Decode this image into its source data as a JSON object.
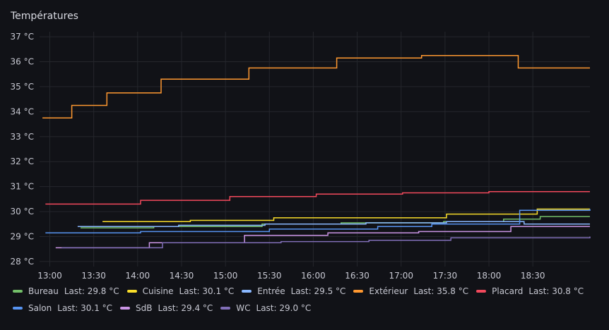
{
  "panel": {
    "title": "Températures"
  },
  "chart_data": {
    "type": "line",
    "title": "Températures",
    "xlabel": "",
    "ylabel": "",
    "unit": "°C",
    "xlim": [
      "12:53",
      "19:09"
    ],
    "ylim": [
      27.8,
      37.2
    ],
    "y_ticks": [
      "28 °C",
      "29 °C",
      "30 °C",
      "31 °C",
      "32 °C",
      "33 °C",
      "34 °C",
      "35 °C",
      "36 °C",
      "37 °C"
    ],
    "x_ticks": [
      "13:00",
      "13:30",
      "14:00",
      "14:30",
      "15:00",
      "15:30",
      "16:00",
      "16:30",
      "17:00",
      "17:30",
      "18:00",
      "18:30"
    ],
    "grid": true,
    "legend_position": "bottom",
    "series": [
      {
        "name": "Bureau",
        "color": "#73bf69",
        "last": "Last: 29.8 °C",
        "x": [
          "13:21",
          "14:11",
          "15:25",
          "16:19",
          "17:29",
          "18:10",
          "18:35",
          "19:09"
        ],
        "y": [
          29.35,
          29.4,
          29.5,
          29.55,
          29.6,
          29.7,
          29.8,
          29.8
        ]
      },
      {
        "name": "Cuisine",
        "color": "#fade2a",
        "last": "Last: 30.1 °C",
        "x": [
          "13:36",
          "14:36",
          "15:33",
          "17:31",
          "18:33",
          "19:09"
        ],
        "y": [
          29.6,
          29.65,
          29.75,
          29.9,
          30.1,
          30.1
        ]
      },
      {
        "name": "Entrée",
        "color": "#8ab8ff",
        "last": "Last: 29.5 °C",
        "x": [
          "13:19",
          "14:28",
          "15:27",
          "16:36",
          "17:31",
          "18:24",
          "19:09"
        ],
        "y": [
          29.4,
          29.45,
          29.5,
          29.55,
          29.6,
          29.5,
          29.5
        ]
      },
      {
        "name": "Extérieur",
        "color": "#ff9830",
        "last": "Last: 35.8 °C",
        "x": [
          "12:55",
          "13:15",
          "13:39",
          "14:16",
          "15:16",
          "16:16",
          "17:14",
          "18:20",
          "19:09"
        ],
        "y": [
          33.75,
          34.25,
          34.75,
          35.3,
          35.75,
          36.15,
          36.25,
          35.75,
          35.75
        ]
      },
      {
        "name": "Placard",
        "color": "#f2495c",
        "last": "Last: 30.8 °C",
        "x": [
          "12:57",
          "14:02",
          "15:03",
          "16:02",
          "17:01",
          "18:00",
          "19:09"
        ],
        "y": [
          30.3,
          30.45,
          30.6,
          30.7,
          30.75,
          30.8,
          30.8
        ]
      },
      {
        "name": "Salon",
        "color": "#5794f2",
        "last": "Last: 30.1 °C",
        "x": [
          "12:57",
          "14:02",
          "15:30",
          "16:44",
          "17:21",
          "18:21",
          "19:09"
        ],
        "y": [
          29.15,
          29.2,
          29.3,
          29.4,
          29.5,
          30.05,
          30.1
        ]
      },
      {
        "name": "SdB",
        "color": "#ca95e5",
        "last": "Last: 29.4 °C",
        "x": [
          "13:04",
          "14:08",
          "15:13",
          "16:10",
          "17:12",
          "18:15",
          "19:09"
        ],
        "y": [
          28.55,
          28.75,
          29.05,
          29.15,
          29.2,
          29.4,
          29.4
        ]
      },
      {
        "name": "WC",
        "color": "#806eb7",
        "last": "Last: 29.0 °C",
        "x": [
          "13:08",
          "14:17",
          "15:38",
          "16:38",
          "17:34",
          "19:09"
        ],
        "y": [
          28.55,
          28.75,
          28.8,
          28.85,
          28.95,
          29.0
        ]
      }
    ]
  }
}
